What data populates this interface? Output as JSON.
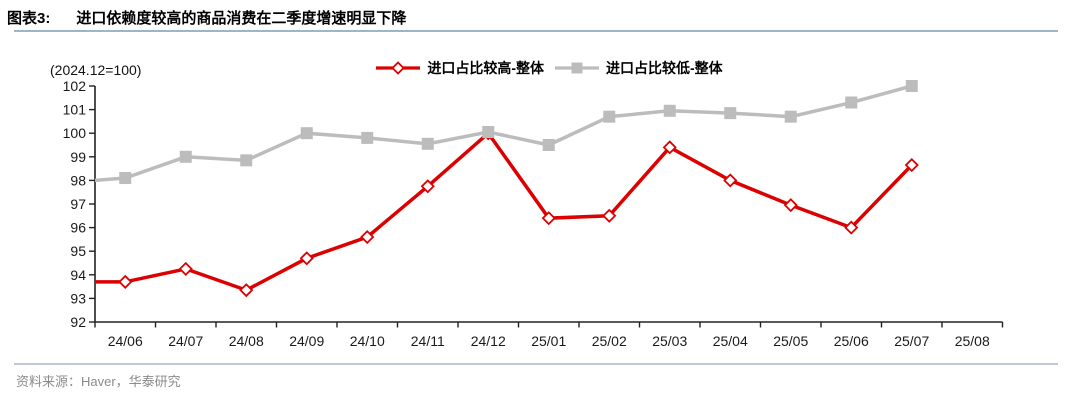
{
  "header": {
    "label": "图表3:",
    "title": "进口依赖度较高的商品消费在二季度增速明显下降"
  },
  "footer": {
    "source": "资料来源：Haver，华泰研究"
  },
  "colors": {
    "series_high": "#dd0000",
    "series_low": "#bcbcbc",
    "title_rule": "#9db4cb",
    "footer_rule": "#bcc9d8",
    "axis": "#222222",
    "tick_label": "#1a1a1a",
    "source_text": "#8a8a8a"
  },
  "chart_data": {
    "type": "line",
    "title": "进口依赖度较高的商品消费在二季度增速明显下降",
    "ylabel_note": "(2024.12=100)",
    "categories": [
      "24/06",
      "24/07",
      "24/08",
      "24/09",
      "24/10",
      "24/11",
      "24/12",
      "25/01",
      "25/02",
      "25/03",
      "25/04",
      "25/05",
      "25/06",
      "25/07",
      "25/08"
    ],
    "series": [
      {
        "id": "high-import-share",
        "name": "进口占比较高-整体",
        "color": "#dd0000",
        "marker": "diamond",
        "marker_fill": "open",
        "left_edge_value": 93.7,
        "values": [
          93.7,
          94.25,
          93.35,
          94.7,
          95.6,
          97.75,
          100.0,
          96.4,
          96.5,
          99.4,
          98.0,
          96.95,
          96.0,
          98.65,
          null
        ]
      },
      {
        "id": "low-import-share",
        "name": "进口占比较低-整体",
        "color": "#bcbcbc",
        "marker": "square",
        "marker_fill": "solid",
        "left_edge_value": 98.0,
        "values": [
          98.1,
          99.0,
          98.85,
          100.0,
          99.8,
          99.55,
          100.05,
          99.5,
          100.7,
          100.95,
          100.85,
          100.7,
          101.3,
          102.0,
          null
        ]
      }
    ],
    "ylim": [
      92,
      102
    ],
    "ytick_step": 1,
    "grid": false,
    "legend_position": "top-center"
  }
}
